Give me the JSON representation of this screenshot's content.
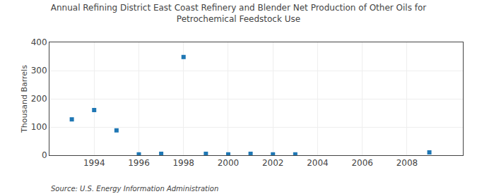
{
  "chart_data": {
    "type": "scatter",
    "title": "Annual Refining District East Coast Refinery and Blender Net Production of Other Oils for\nPetrochemical Feedstock Use",
    "ylabel": "Thousand Barrels",
    "annotations": [
      "Source: U.S. Energy Information Administration"
    ],
    "x": [
      1993,
      1994,
      1995,
      1996,
      1997,
      1998,
      1999,
      2000,
      2001,
      2002,
      2003,
      2009
    ],
    "values": [
      127,
      160,
      88,
      3,
      5,
      348,
      5,
      3,
      5,
      3,
      3,
      10
    ],
    "marker": "square",
    "xlim": [
      1992.0,
      2010.5
    ],
    "ylim": [
      0,
      400
    ],
    "xticks": [
      1994,
      1996,
      1998,
      2000,
      2002,
      2004,
      2006,
      2008
    ],
    "yticks": [
      0,
      100,
      200,
      300,
      400
    ],
    "grid": true
  }
}
